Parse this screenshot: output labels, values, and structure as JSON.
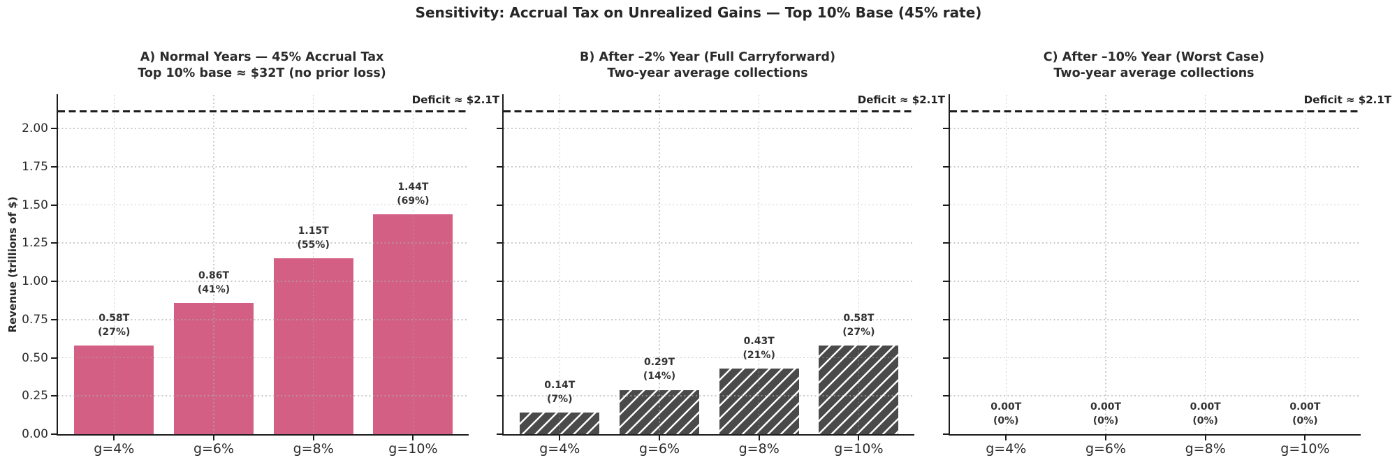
{
  "chart_data": {
    "type": "bar",
    "title": "Sensitivity: Accrual Tax on Unrealized Gains — Top 10% Base (45% rate)",
    "ylabel": "Revenue (trillions of $)",
    "categories": [
      "g=4%",
      "g=6%",
      "g=8%",
      "g=10%"
    ],
    "ylim": [
      0,
      2.224
    ],
    "ytick_values": [
      0,
      0.25,
      0.5,
      0.75,
      1.0,
      1.25,
      1.5,
      1.75,
      2.0
    ],
    "ytick_labels": [
      "0.00",
      "0.25",
      "0.50",
      "0.75",
      "1.00",
      "1.25",
      "1.50",
      "1.75",
      "2.00"
    ],
    "grid": true,
    "legend": "none",
    "deficit_line": {
      "value": 2.11,
      "label": "Deficit ≈ $2.1T",
      "style": "dashed"
    },
    "colors": {
      "solid_bar": "#d45f84",
      "hatched_bar_face": "#4a4a4a",
      "hatch": "#ffffff",
      "grid": "#c9c9c9",
      "axis": "#1c1c1c",
      "text": "#262626"
    },
    "panels": [
      {
        "label": "A",
        "title": "A) Normal Years — 45% Accrual Tax",
        "subtitle": "Top 10% base ≈ $32T (no prior loss)",
        "bar_style": "solid",
        "show_y_tick_labels": true,
        "bars": [
          {
            "category": "g=4%",
            "value": 0.58,
            "label": "0.58T",
            "pct": "(27%)"
          },
          {
            "category": "g=6%",
            "value": 0.86,
            "label": "0.86T",
            "pct": "(41%)"
          },
          {
            "category": "g=8%",
            "value": 1.15,
            "label": "1.15T",
            "pct": "(55%)"
          },
          {
            "category": "g=10%",
            "value": 1.44,
            "label": "1.44T",
            "pct": "(69%)"
          }
        ]
      },
      {
        "label": "B",
        "title": "B) After –2% Year (Full Carryforward)",
        "subtitle": "Two-year average collections",
        "bar_style": "hatched",
        "show_y_tick_labels": false,
        "bars": [
          {
            "category": "g=4%",
            "value": 0.14,
            "label": "0.14T",
            "pct": "(7%)"
          },
          {
            "category": "g=6%",
            "value": 0.29,
            "label": "0.29T",
            "pct": "(14%)"
          },
          {
            "category": "g=8%",
            "value": 0.43,
            "label": "0.43T",
            "pct": "(21%)"
          },
          {
            "category": "g=10%",
            "value": 0.58,
            "label": "0.58T",
            "pct": "(27%)"
          }
        ]
      },
      {
        "label": "C",
        "title": "C) After –10% Year (Worst Case)",
        "subtitle": "Two-year average collections",
        "bar_style": "hatched",
        "show_y_tick_labels": false,
        "bars": [
          {
            "category": "g=4%",
            "value": 0.0,
            "label": "0.00T",
            "pct": "(0%)"
          },
          {
            "category": "g=6%",
            "value": 0.0,
            "label": "0.00T",
            "pct": "(0%)"
          },
          {
            "category": "g=8%",
            "value": 0.0,
            "label": "0.00T",
            "pct": "(0%)"
          },
          {
            "category": "g=10%",
            "value": 0.0,
            "label": "0.00T",
            "pct": "(0%)"
          }
        ]
      }
    ]
  }
}
